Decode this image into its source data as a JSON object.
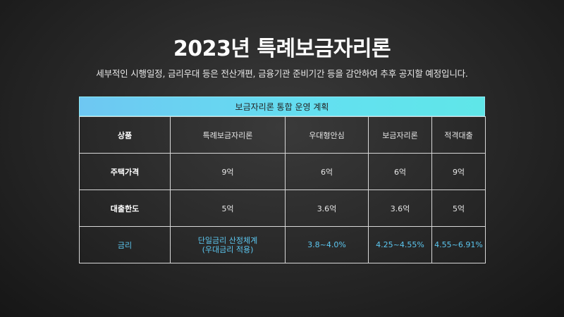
{
  "title": "2023년 특례보금자리론",
  "subtitle": "세부적인 시행일정, 금리우대 등은 전산개편, 금융기관 준비기간 등을 감안하여 추후 공지할 예정입니다.",
  "table": {
    "caption": "보금자리론 통합 운영 계획",
    "columns": [
      "상품",
      "특례보금자리론",
      "우대형안심",
      "보금자리론",
      "적격대출"
    ],
    "rows": [
      {
        "label": "주택가격",
        "cells": [
          "9억",
          "6억",
          "6억",
          "9억"
        ]
      },
      {
        "label": "대출한도",
        "cells": [
          "5억",
          "3.6억",
          "3.6억",
          "5억"
        ]
      },
      {
        "label": "금리",
        "first_line1": "단일금리 산정체계",
        "first_line2": "(우대금리 적용)",
        "cells": [
          "3.8~4.0%",
          "4.25~4.55%",
          "4.55~6.91%"
        ]
      }
    ]
  },
  "colors": {
    "header_gradient_start": "#6ec7f2",
    "header_gradient_end": "#5fe6e8",
    "rate_text": "#5cc7f0",
    "background": "#2a2a2a"
  }
}
